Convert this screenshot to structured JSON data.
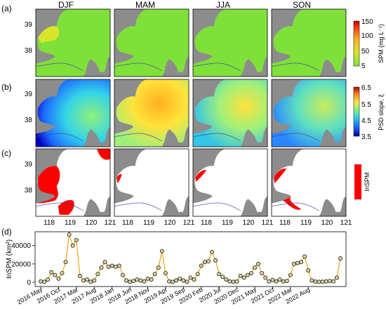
{
  "panel_labels": [
    "(a)",
    "(b)",
    "(c)",
    "(d)"
  ],
  "seasons": [
    "DJF",
    "MAM",
    "JJA",
    "SON"
  ],
  "lat_ticks": [
    "39",
    "38"
  ],
  "lon_ticks": [
    "118",
    "119",
    "120",
    "121"
  ],
  "colorbars": {
    "spm": {
      "label": "SPM (mg L⁻¹)",
      "ticks": [
        "150",
        "100",
        "50",
        "5"
      ]
    },
    "psd": {
      "label": "PSD slope, ξ",
      "ticks": [
        "6.5",
        "5.5",
        "4.5",
        "3.5"
      ]
    },
    "insp": {
      "label": "InSPM"
    }
  },
  "colors": {
    "land": "#8c8c8c",
    "spm_base": "#7fe03a",
    "insp": "#ff0000",
    "line": "#e6a000",
    "marker_fill": "#d8d3a0",
    "river": "#3a3aa8"
  },
  "chart_data": {
    "type": "line",
    "title": "",
    "ylabel": "InSPM (km²)",
    "xlabel": "",
    "ylim": [
      0,
      52000
    ],
    "yticks": [
      "0",
      "20000",
      "40000"
    ],
    "grid": false,
    "xtick_labels": [
      "2016 May",
      "2016 Oct",
      "2017 Mar",
      "2017 Aug",
      "2018 Jan",
      "2018 Jun",
      "2018 Nov",
      "2019 Apr",
      "2019 Sep",
      "2020 Feb",
      "2020 Jul",
      "2020 Dec",
      "2021 May",
      "2021 Oct",
      "2022 Mar",
      "2022 Aug"
    ],
    "series": [
      {
        "values": [
          1000,
          500,
          3000,
          11000,
          8000,
          4000,
          10000,
          22000,
          52000,
          40000,
          46000,
          7000,
          2000,
          3000,
          600,
          2000,
          9000,
          16000,
          22000,
          17000,
          18000,
          17000,
          18000,
          8000,
          2000,
          500,
          1500,
          3000,
          2000,
          1000,
          4000,
          3000,
          9000,
          16000,
          34000,
          10000,
          1000,
          500,
          2000,
          4000,
          2000,
          500,
          5000,
          3000,
          9000,
          18000,
          22000,
          23000,
          33000,
          24000,
          9000,
          6000,
          3000,
          1000,
          500,
          1000,
          7000,
          5000,
          8000,
          10000,
          16000,
          20000,
          10000,
          5000,
          1000,
          2500,
          1000,
          3000,
          1000,
          1500,
          8000,
          20000,
          21000,
          22000,
          28000,
          13000,
          2000,
          800,
          500,
          600,
          1000,
          1500,
          1000,
          5000,
          26000
        ]
      }
    ]
  }
}
